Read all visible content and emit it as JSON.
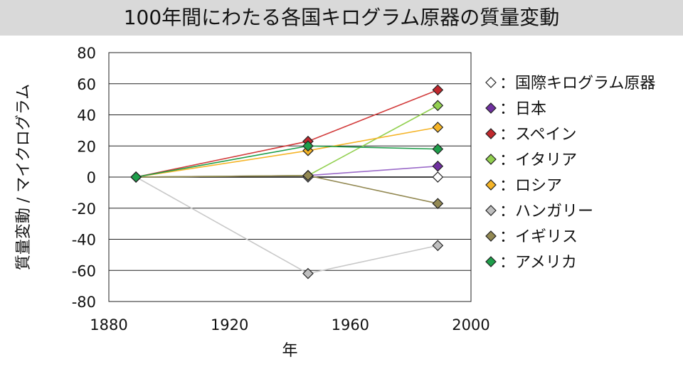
{
  "chart_data": {
    "type": "line",
    "title": "100年間にわたる各国キログラム原器の質量変動",
    "xlabel": "年",
    "ylabel": "質量変動 / マイクログラム",
    "xlim": [
      1880,
      2000
    ],
    "ylim": [
      -80,
      80
    ],
    "x_ticks": [
      1880,
      1920,
      1960,
      2000
    ],
    "y_ticks": [
      80,
      60,
      40,
      20,
      0,
      -20,
      -40,
      -60,
      -80
    ],
    "grid": "horizontal",
    "legend_position": "right",
    "series": [
      {
        "name": "：国際キログラム原器",
        "color": "#ffffff",
        "line": "#000000",
        "x": [
          1889,
          1946,
          1989
        ],
        "y": [
          0,
          0,
          0
        ]
      },
      {
        "name": "：日本",
        "color": "#7030a0",
        "line": "#9b6bc9",
        "x": [
          1889,
          1946,
          1989
        ],
        "y": [
          0,
          1,
          7
        ]
      },
      {
        "name": "：スペイン",
        "color": "#c0282d",
        "line": "#d23c3c",
        "x": [
          1889,
          1946,
          1989
        ],
        "y": [
          0,
          23,
          56
        ]
      },
      {
        "name": "：イタリア",
        "color": "#92d050",
        "line": "#92d050",
        "x": [
          1889,
          1946,
          1989
        ],
        "y": [
          0,
          1,
          46
        ]
      },
      {
        "name": "：ロシア",
        "color": "#f5b427",
        "line": "#f5b427",
        "x": [
          1889,
          1946,
          1989
        ],
        "y": [
          0,
          17,
          32
        ]
      },
      {
        "name": "：ハンガリー",
        "color": "#bfbfbf",
        "line": "#c8c8c8",
        "x": [
          1889,
          1946,
          1989
        ],
        "y": [
          0,
          -62,
          -44
        ]
      },
      {
        "name": "：イギリス",
        "color": "#938953",
        "line": "#938953",
        "x": [
          1889,
          1946,
          1989
        ],
        "y": [
          0,
          1,
          -17
        ]
      },
      {
        "name": "：アメリカ",
        "color": "#1e9e4a",
        "line": "#1e9e4a",
        "x": [
          1889,
          1946,
          1989
        ],
        "y": [
          0,
          20,
          18
        ]
      }
    ]
  }
}
